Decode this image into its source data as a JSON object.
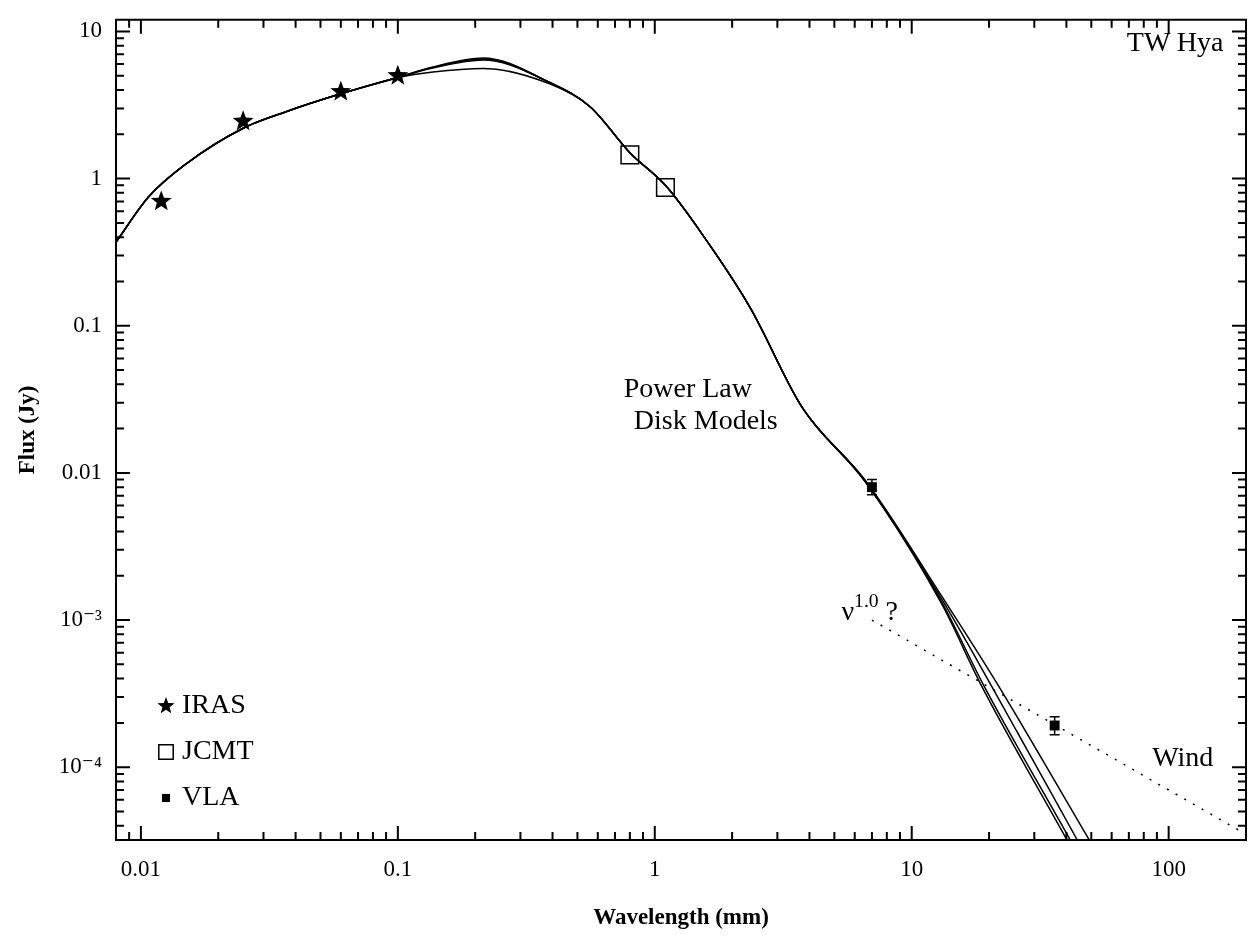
{
  "chart_data": {
    "type": "scatter",
    "title": "TW Hya",
    "xlabel": "Wavelength (mm)",
    "ylabel": "Flux (Jy)",
    "log": "xy",
    "legend": "bottom left",
    "xlim": [
      0.008,
      200
    ],
    "ylim": [
      3.2e-05,
      12
    ],
    "xticks": [
      {
        "value": 0.009,
        "label": null
      },
      0.01,
      {
        "value": 0.02,
        "label": null
      },
      {
        "value": 0.03,
        "label": null
      },
      {
        "value": 0.04,
        "label": null
      },
      {
        "value": 0.05,
        "label": null
      },
      {
        "value": 0.06,
        "label": null
      },
      {
        "value": 0.07,
        "label": null
      },
      {
        "value": 0.08,
        "label": null
      },
      {
        "value": 0.09,
        "label": null
      },
      0.1,
      {
        "value": 0.2,
        "label": null
      },
      {
        "value": 0.3,
        "label": null
      },
      {
        "value": 0.4,
        "label": null
      },
      {
        "value": 0.5,
        "label": null
      },
      {
        "value": 0.6,
        "label": null
      },
      {
        "value": 0.7,
        "label": null
      },
      {
        "value": 0.8,
        "label": null
      },
      {
        "value": 0.9,
        "label": null
      },
      1,
      {
        "value": 2,
        "label": null
      },
      {
        "value": 3,
        "label": null
      },
      {
        "value": 4,
        "label": null
      },
      {
        "value": 5,
        "label": null
      },
      {
        "value": 6,
        "label": null
      },
      {
        "value": 7,
        "label": null
      },
      {
        "value": 8,
        "label": null
      },
      {
        "value": 9,
        "label": null
      },
      10,
      {
        "value": 20,
        "label": null
      },
      {
        "value": 30,
        "label": null
      },
      {
        "value": 40,
        "label": null
      },
      {
        "value": 50,
        "label": null
      },
      {
        "value": 60,
        "label": null
      },
      {
        "value": 70,
        "label": null
      },
      {
        "value": 80,
        "label": null
      },
      {
        "value": 90,
        "label": null
      },
      100
    ],
    "yticks": [
      {
        "value": 4e-05,
        "label": null
      },
      {
        "value": 5e-05,
        "label": null
      },
      {
        "value": 6e-05,
        "label": null
      },
      {
        "value": 7e-05,
        "label": null
      },
      {
        "value": 8e-05,
        "label": null
      },
      {
        "value": 9e-05,
        "label": null
      },
      {
        "value": 0.0001,
        "label": "10⁻⁴"
      },
      {
        "value": 0.0002,
        "label": null
      },
      {
        "value": 0.0003,
        "label": null
      },
      {
        "value": 0.0004,
        "label": null
      },
      {
        "value": 0.0005,
        "label": null
      },
      {
        "value": 0.0006,
        "label": null
      },
      {
        "value": 0.0007,
        "label": null
      },
      {
        "value": 0.0008,
        "label": null
      },
      {
        "value": 0.0009,
        "label": null
      },
      {
        "value": 0.001,
        "label": "10⁻³"
      },
      {
        "value": 0.002,
        "label": null
      },
      {
        "value": 0.003,
        "label": null
      },
      {
        "value": 0.004,
        "label": null
      },
      {
        "value": 0.005,
        "label": null
      },
      {
        "value": 0.006,
        "label": null
      },
      {
        "value": 0.007,
        "label": null
      },
      {
        "value": 0.008,
        "label": null
      },
      {
        "value": 0.009,
        "label": null
      },
      0.01,
      {
        "value": 0.02,
        "label": null
      },
      {
        "value": 0.03,
        "label": null
      },
      {
        "value": 0.04,
        "label": null
      },
      {
        "value": 0.05,
        "label": null
      },
      {
        "value": 0.06,
        "label": null
      },
      {
        "value": 0.07,
        "label": null
      },
      {
        "value": 0.08,
        "label": null
      },
      {
        "value": 0.09,
        "label": null
      },
      0.1,
      {
        "value": 0.2,
        "label": null
      },
      {
        "value": 0.3,
        "label": null
      },
      {
        "value": 0.4,
        "label": null
      },
      {
        "value": 0.5,
        "label": null
      },
      {
        "value": 0.6,
        "label": null
      },
      {
        "value": 0.7,
        "label": null
      },
      {
        "value": 0.8,
        "label": null
      },
      {
        "value": 0.9,
        "label": null
      },
      1,
      {
        "value": 2,
        "label": null
      },
      {
        "value": 3,
        "label": null
      },
      {
        "value": 4,
        "label": null
      },
      {
        "value": 5,
        "label": null
      },
      {
        "value": 6,
        "label": null
      },
      {
        "value": 7,
        "label": null
      },
      {
        "value": 8,
        "label": null
      },
      {
        "value": 9,
        "label": null
      },
      10
    ],
    "series": [
      {
        "type": "line",
        "color": "#000000",
        "marker": "none",
        "line_style": "solid",
        "x": [
          0.008,
          0.0107,
          0.015,
          0.025,
          0.0367,
          0.06,
          0.1,
          0.137,
          0.215,
          0.39,
          0.56,
          0.8,
          1.1,
          1.5,
          2.35,
          3.74,
          6.6,
          13.1,
          18.5,
          40.2
        ],
        "values": [
          0.37,
          0.75,
          1.26,
          2.2,
          2.85,
          3.77,
          4.87,
          5.74,
          6.6,
          4.5,
          3.08,
          1.5,
          0.9,
          0.44,
          0.133,
          0.028,
          0.0087,
          0.00128,
          0.00037,
          3.2e-05
        ]
      },
      {
        "type": "line",
        "color": "#000000",
        "marker": "none",
        "line_style": "solid",
        "x": [
          0.008,
          0.0107,
          0.015,
          0.025,
          0.0367,
          0.06,
          0.1,
          0.137,
          0.215,
          0.39,
          0.56,
          0.8,
          1.1,
          1.5,
          2.35,
          3.74,
          6.6,
          13.1,
          18.9,
          41.4
        ],
        "values": [
          0.37,
          0.75,
          1.26,
          2.2,
          2.85,
          3.77,
          4.87,
          5.7,
          6.5,
          4.5,
          3.08,
          1.5,
          0.9,
          0.44,
          0.133,
          0.028,
          0.0087,
          0.00132,
          0.00037,
          3.2e-05
        ]
      },
      {
        "type": "line",
        "color": "#000000",
        "marker": "none",
        "line_style": "solid",
        "x": [
          0.008,
          0.0107,
          0.015,
          0.025,
          0.0367,
          0.06,
          0.1,
          0.137,
          0.215,
          0.39,
          0.56,
          0.8,
          1.1,
          1.5,
          2.35,
          3.74,
          6.6,
          13.1,
          20.2,
          44.1
        ],
        "values": [
          0.37,
          0.75,
          1.26,
          2.2,
          2.85,
          3.77,
          4.87,
          5.65,
          6.4,
          4.5,
          3.08,
          1.5,
          0.9,
          0.44,
          0.133,
          0.028,
          0.0088,
          0.00138,
          0.00037,
          3.2e-05
        ]
      },
      {
        "type": "line",
        "color": "#000000",
        "marker": "none",
        "line_style": "solid",
        "x": [
          0.008,
          0.0107,
          0.015,
          0.025,
          0.0367,
          0.06,
          0.1,
          0.137,
          0.215,
          0.39,
          0.56,
          0.8,
          1.1,
          1.5,
          2.35,
          3.74,
          6.6,
          13.1,
          21.5,
          49.1
        ],
        "values": [
          0.37,
          0.75,
          1.26,
          2.2,
          2.85,
          3.77,
          4.85,
          5.3,
          5.6,
          4.4,
          3.08,
          1.5,
          0.9,
          0.44,
          0.133,
          0.028,
          0.0089,
          0.00145,
          0.00037,
          3.2e-05
        ]
      },
      {
        "type": "line",
        "color": "#000000",
        "marker": "none",
        "line_style": "dotted",
        "x": [
          7,
          200
        ],
        "values": [
          0.001,
          3.5e-05
        ]
      },
      {
        "type": "scatter",
        "name": "IRAS",
        "color": "#000000",
        "marker": "star",
        "x": [
          0.012,
          0.025,
          0.06,
          0.1
        ],
        "values": [
          0.7,
          2.45,
          3.9,
          5.0
        ]
      },
      {
        "type": "scatter",
        "name": "JCMT",
        "color": "#000000",
        "marker": "square",
        "x": [
          0.8,
          1.1
        ],
        "values": [
          1.45,
          0.87
        ]
      },
      {
        "type": "scatter",
        "name": "VLA",
        "color": "#000000",
        "marker": "square",
        "x": [
          7,
          36
        ],
        "values": [
          0.008,
          0.000192
        ],
        "errors": [
          [
            0.0071,
            0.009
          ],
          [
            0.000166,
            0.00022
          ]
        ]
      }
    ],
    "annotations": [
      "Power Law Disk Models",
      "ν$^{1.0}$ ?",
      "Wind"
    ]
  }
}
